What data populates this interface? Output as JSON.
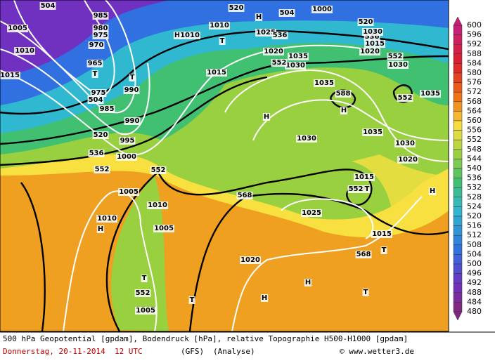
{
  "map_labels": [
    "504",
    "985",
    "980",
    "975",
    "970",
    "965",
    "T",
    "975",
    "504",
    "985",
    "1005",
    "1010",
    "1015",
    "T",
    "990",
    "990",
    "520",
    "995",
    "536",
    "1000",
    "552",
    "552",
    "1005",
    "1010",
    "1010",
    "H",
    "1005",
    "T",
    "552",
    "1005",
    "T",
    "1020",
    "H",
    "H",
    "T",
    "568",
    "1025",
    "552",
    "T",
    "1015",
    "1015",
    "568",
    "T",
    "H",
    "1020",
    "1030",
    "1035",
    "1030",
    "H",
    "H",
    "588",
    "1035",
    "1030",
    "1035",
    "552",
    "1020",
    "1015",
    "552",
    "1030",
    "552",
    "1035",
    "520",
    "H",
    "504",
    "1000",
    "520",
    "536",
    "1025",
    "536",
    "H",
    "1010",
    "T",
    "1010",
    "1020",
    "1030",
    "1015"
  ],
  "scale": {
    "labels": [
      600,
      596,
      592,
      588,
      584,
      580,
      576,
      572,
      568,
      564,
      560,
      556,
      552,
      548,
      544,
      540,
      536,
      532,
      528,
      524,
      520,
      516,
      512,
      508,
      504,
      500,
      496,
      492,
      488,
      484,
      480
    ]
  },
  "footer": {
    "caption": "500 hPa Geopotential [gpdam], Bodendruck [hPa], relative Topographie H500-H1000 [gpdam]",
    "date": "Donnerstag, 20-11-2014  12 UTC",
    "model": "(GFS)",
    "run": "(Analyse)",
    "credit": "© www.wetter3.de"
  }
}
